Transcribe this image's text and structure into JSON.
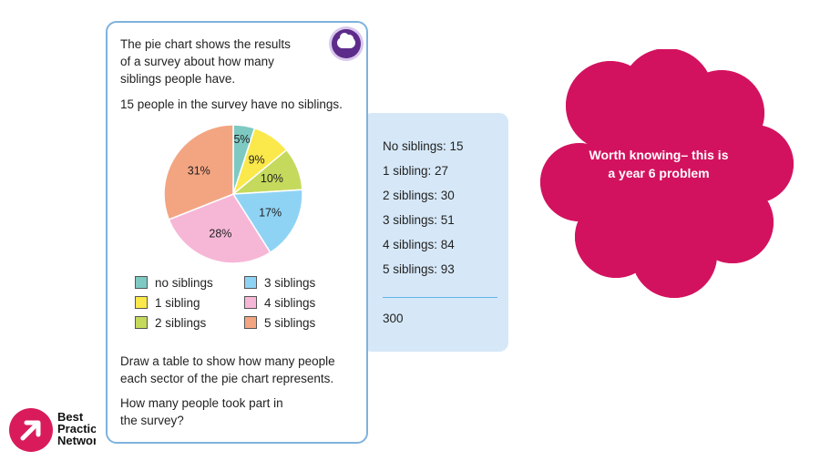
{
  "question": {
    "intro": [
      "The pie chart shows the results",
      "of a survey about how many",
      "siblings people have."
    ],
    "fact": "15 people in the survey have no siblings.",
    "task": [
      "Draw a table to show how many people",
      "each sector of the pie chart represents."
    ],
    "followup": [
      "How many people took part in",
      "the survey?"
    ],
    "icon": "thought-cloud-icon"
  },
  "chart_data": {
    "type": "pie",
    "slices": [
      {
        "label": "no siblings",
        "value": 5,
        "display": "5%",
        "color": "#7ecac3"
      },
      {
        "label": "1 sibling",
        "value": 9,
        "display": "9%",
        "color": "#fbe84a"
      },
      {
        "label": "2 siblings",
        "value": 10,
        "display": "10%",
        "color": "#c5d95c"
      },
      {
        "label": "3 siblings",
        "value": 17,
        "display": "17%",
        "color": "#8fd3f4"
      },
      {
        "label": "4 siblings",
        "value": 28,
        "display": "28%",
        "color": "#f6b7d7"
      },
      {
        "label": "5 siblings",
        "value": 31,
        "display": "31%",
        "color": "#f3a582"
      }
    ]
  },
  "answers": {
    "items": [
      "No siblings: 15",
      "1 sibling: 27",
      "2 siblings: 30",
      "3 siblings: 51",
      "4 siblings: 84",
      "5 siblings: 93"
    ],
    "total": "300",
    "panel_color": "#d6e8f8"
  },
  "callout": {
    "lines": [
      "Worth knowing– this is",
      "a year 6 problem"
    ],
    "color": "#d3125f"
  },
  "logo": {
    "lines": [
      "Best",
      "Practice",
      "Network"
    ],
    "color": "#d91b5c"
  }
}
